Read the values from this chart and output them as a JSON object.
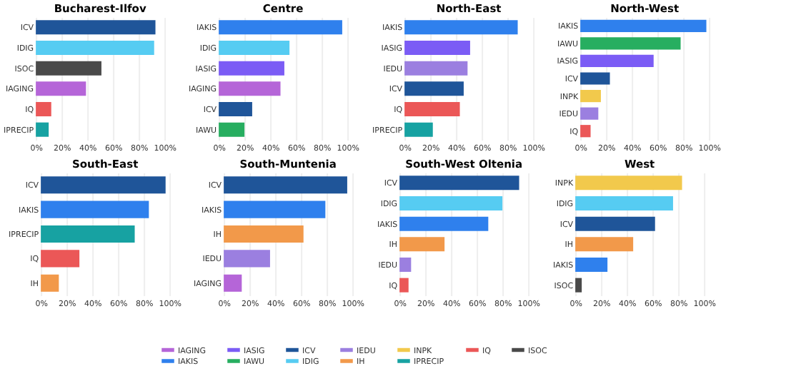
{
  "chart_data": [
    {
      "type": "bar",
      "orientation": "horizontal",
      "title": "Bucharest-Ilfov",
      "categories": [
        "ICV",
        "IDIG",
        "ISOC",
        "IAGING",
        "IQ",
        "IPRECIP"
      ],
      "values": [
        93,
        92,
        51,
        39,
        12,
        10
      ],
      "colors": [
        "#1f5599",
        "#56ccf2",
        "#4a4a4a",
        "#b565d8",
        "#eb5757",
        "#17a2a2"
      ],
      "xlim": [
        0,
        100
      ],
      "xticks": [
        {
          "value": 0,
          "label": "0%"
        },
        {
          "value": 20,
          "label": "20%"
        },
        {
          "value": 40,
          "label": "40%"
        },
        {
          "value": 60,
          "label": "60%"
        },
        {
          "value": 80,
          "label": "80%"
        },
        {
          "value": 100,
          "label": "100%"
        }
      ],
      "grid": "x"
    },
    {
      "type": "bar",
      "orientation": "horizontal",
      "title": "Centre",
      "categories": [
        "IAKIS",
        "IDIG",
        "IASIG",
        "IAGING",
        "ICV",
        "IAWU"
      ],
      "values": [
        96,
        55,
        51,
        48,
        26,
        20
      ],
      "colors": [
        "#2f80ed",
        "#56ccf2",
        "#7b5cf5",
        "#b565d8",
        "#1f5599",
        "#27ae60"
      ],
      "xlim": [
        0,
        100
      ],
      "xticks": [
        {
          "value": 0,
          "label": "0%"
        },
        {
          "value": 20,
          "label": "20%"
        },
        {
          "value": 40,
          "label": "40%"
        },
        {
          "value": 60,
          "label": "60%"
        },
        {
          "value": 80,
          "label": "80%"
        },
        {
          "value": 100,
          "label": "100%"
        }
      ],
      "grid": "x"
    },
    {
      "type": "bar",
      "orientation": "horizontal",
      "title": "North-East",
      "categories": [
        "IAKIS",
        "IASIG",
        "IEDU",
        "ICV",
        "IQ",
        "IPRECIP"
      ],
      "values": [
        88,
        51,
        49,
        46,
        43,
        22
      ],
      "colors": [
        "#2f80ed",
        "#7b5cf5",
        "#9b7fe0",
        "#1f5599",
        "#eb5757",
        "#17a2a2"
      ],
      "xlim": [
        0,
        100
      ],
      "xticks": [
        {
          "value": 0,
          "label": "0%"
        },
        {
          "value": 20,
          "label": "20%"
        },
        {
          "value": 40,
          "label": "40%"
        },
        {
          "value": 60,
          "label": "60%"
        },
        {
          "value": 80,
          "label": "80%"
        },
        {
          "value": 100,
          "label": "100%"
        }
      ],
      "grid": "x"
    },
    {
      "type": "bar",
      "orientation": "horizontal",
      "title": "North-West",
      "categories": [
        "IAKIS",
        "IAWU",
        "IASIG",
        "ICV",
        "INPK",
        "IEDU",
        "IQ"
      ],
      "values": [
        98,
        78,
        57,
        23,
        16,
        14,
        8
      ],
      "colors": [
        "#2f80ed",
        "#27ae60",
        "#7b5cf5",
        "#1f5599",
        "#f2c94c",
        "#9b7fe0",
        "#eb5757"
      ],
      "xlim": [
        0,
        100
      ],
      "xticks": [
        {
          "value": 0,
          "label": "0%"
        },
        {
          "value": 20,
          "label": "20%"
        },
        {
          "value": 40,
          "label": "40%"
        },
        {
          "value": 60,
          "label": "60%"
        },
        {
          "value": 80,
          "label": "80%"
        },
        {
          "value": 100,
          "label": "100%"
        }
      ],
      "grid": "x"
    },
    {
      "type": "bar",
      "orientation": "horizontal",
      "title": "South-East",
      "categories": [
        "ICV",
        "IAKIS",
        "IPRECIP",
        "IQ",
        "IH"
      ],
      "values": [
        97,
        84,
        73,
        30,
        14
      ],
      "colors": [
        "#1f5599",
        "#2f80ed",
        "#17a2a2",
        "#eb5757",
        "#f2994a"
      ],
      "xlim": [
        0,
        100
      ],
      "xticks": [
        {
          "value": 0,
          "label": "0%"
        },
        {
          "value": 20,
          "label": "20%"
        },
        {
          "value": 40,
          "label": "40%"
        },
        {
          "value": 60,
          "label": "60%"
        },
        {
          "value": 80,
          "label": "80%"
        },
        {
          "value": 100,
          "label": "100%"
        }
      ],
      "grid": "x"
    },
    {
      "type": "bar",
      "orientation": "horizontal",
      "title": "South-Muntenia",
      "categories": [
        "ICV",
        "IAKIS",
        "IH",
        "IEDU",
        "IAGING"
      ],
      "values": [
        96,
        79,
        62,
        36,
        14
      ],
      "colors": [
        "#1f5599",
        "#2f80ed",
        "#f2994a",
        "#9b7fe0",
        "#b565d8"
      ],
      "xlim": [
        0,
        100
      ],
      "xticks": [
        {
          "value": 0,
          "label": "0%"
        },
        {
          "value": 20,
          "label": "20%"
        },
        {
          "value": 40,
          "label": "40%"
        },
        {
          "value": 60,
          "label": "60%"
        },
        {
          "value": 80,
          "label": "80%"
        },
        {
          "value": 100,
          "label": "100%"
        }
      ],
      "grid": "x"
    },
    {
      "type": "bar",
      "orientation": "horizontal",
      "title": "South-West Oltenia",
      "categories": [
        "ICV",
        "IDIG",
        "IAKIS",
        "IH",
        "IEDU",
        "IQ"
      ],
      "values": [
        93,
        80,
        69,
        35,
        9,
        7
      ],
      "colors": [
        "#1f5599",
        "#56ccf2",
        "#2f80ed",
        "#f2994a",
        "#9b7fe0",
        "#eb5757"
      ],
      "xlim": [
        0,
        100
      ],
      "xticks": [
        {
          "value": 0,
          "label": "0%"
        },
        {
          "value": 20,
          "label": "20%"
        },
        {
          "value": 40,
          "label": "40%"
        },
        {
          "value": 60,
          "label": "60%"
        },
        {
          "value": 80,
          "label": "80%"
        },
        {
          "value": 100,
          "label": "100%"
        }
      ],
      "grid": "x"
    },
    {
      "type": "bar",
      "orientation": "horizontal",
      "title": "West",
      "categories": [
        "INPK",
        "IDIG",
        "ICV",
        "IH",
        "IAKIS",
        "ISOC"
      ],
      "values": [
        83,
        76,
        62,
        45,
        25,
        5
      ],
      "colors": [
        "#f2c94c",
        "#56ccf2",
        "#1f5599",
        "#f2994a",
        "#2f80ed",
        "#4a4a4a"
      ],
      "xlim": [
        0,
        100
      ],
      "xticks": [
        {
          "value": 0,
          "label": "0%"
        },
        {
          "value": 20,
          "label": "20%"
        },
        {
          "value": 40,
          "label": "40%"
        },
        {
          "value": 60,
          "label": "60%"
        },
        {
          "value": 80,
          "label": "80%"
        },
        {
          "value": 100,
          "label": "100%"
        }
      ],
      "grid": "x"
    },
    {
      "type": "other",
      "categories": [
        "IAGING",
        "IASIG",
        "ICV",
        "IEDU",
        "INPK",
        "IQ",
        "ISOC",
        "IAKIS",
        "IAWU",
        "IDIG",
        "IH",
        "IPRECIP"
      ],
      "colors": [
        "#b565d8",
        "#7b5cf5",
        "#1f5599",
        "#9b7fe0",
        "#f2c94c",
        "#eb5757",
        "#4a4a4a",
        "#2f80ed",
        "#27ae60",
        "#56ccf2",
        "#f2994a",
        "#17a2a2"
      ]
    }
  ]
}
